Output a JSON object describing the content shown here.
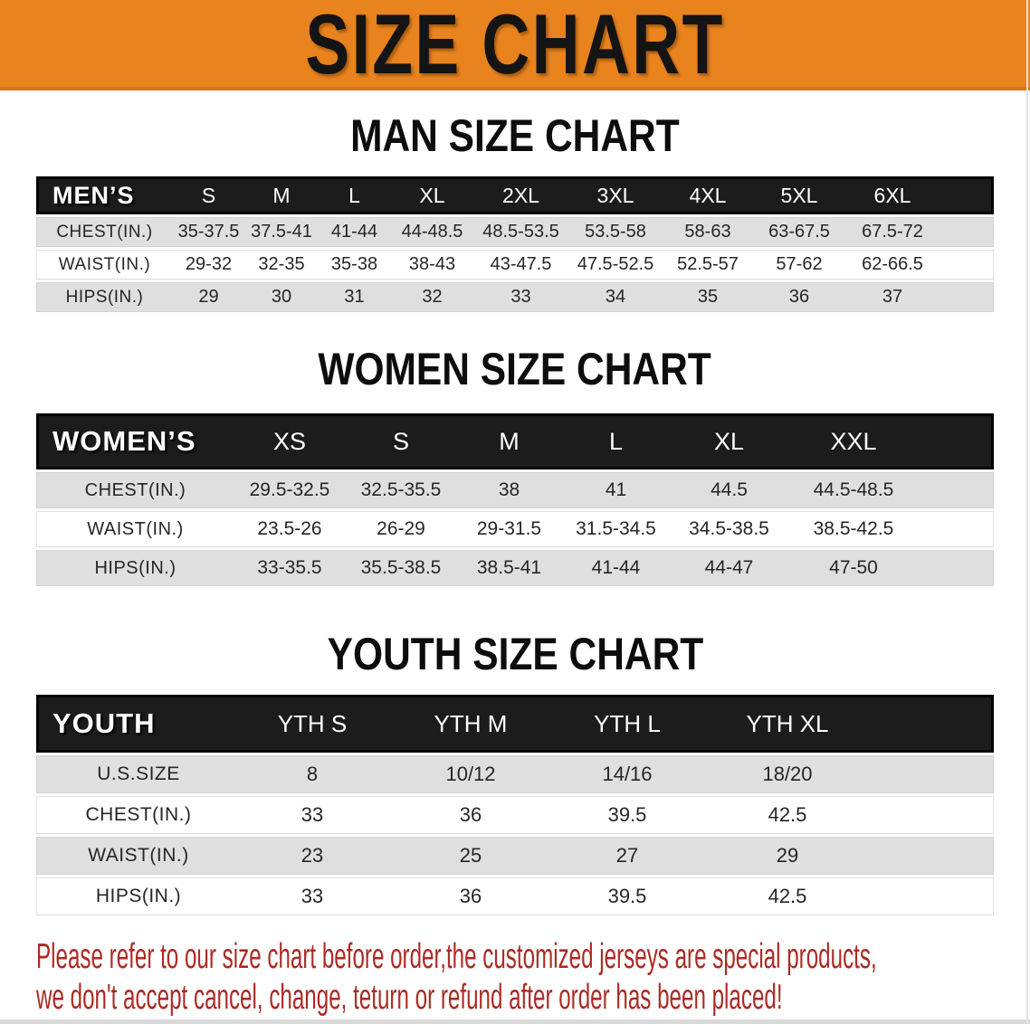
{
  "banner": {
    "title": "SIZE CHART",
    "bg_color": "#E8831E",
    "text_color": "#141414"
  },
  "sections": [
    {
      "heading": "MAN SIZE CHART",
      "label": "MEN’S",
      "columns": [
        "S",
        "M",
        "L",
        "XL",
        "2XL",
        "3XL",
        "4XL",
        "5XL",
        "6XL"
      ],
      "rows": [
        {
          "label": "CHEST(IN.)",
          "values": [
            "35-37.5",
            "37.5-41",
            "41-44",
            "44-48.5",
            "48.5-53.5",
            "53.5-58",
            "58-63",
            "63-67.5",
            "67.5-72"
          ]
        },
        {
          "label": "WAIST(IN.)",
          "values": [
            "29-32",
            "32-35",
            "35-38",
            "38-43",
            "43-47.5",
            "47.5-52.5",
            "52.5-57",
            "57-62",
            "62-66.5"
          ]
        },
        {
          "label": "HIPS(IN.)",
          "values": [
            "29",
            "30",
            "31",
            "32",
            "33",
            "34",
            "35",
            "36",
            "37"
          ]
        }
      ]
    },
    {
      "heading": "WOMEN SIZE CHART",
      "label": "WOMEN’S",
      "columns": [
        "XS",
        "S",
        "M",
        "L",
        "XL",
        "XXL"
      ],
      "rows": [
        {
          "label": "CHEST(IN.)",
          "values": [
            "29.5-32.5",
            "32.5-35.5",
            "38",
            "41",
            "44.5",
            "44.5-48.5"
          ]
        },
        {
          "label": "WAIST(IN.)",
          "values": [
            "23.5-26",
            "26-29",
            "29-31.5",
            "31.5-34.5",
            "34.5-38.5",
            "38.5-42.5"
          ]
        },
        {
          "label": "HIPS(IN.)",
          "values": [
            "33-35.5",
            "35.5-38.5",
            "38.5-41",
            "41-44",
            "44-47",
            "47-50"
          ]
        }
      ]
    },
    {
      "heading": "YOUTH SIZE CHART",
      "label": "YOUTH",
      "columns": [
        "YTH S",
        "YTH M",
        "YTH L",
        "YTH XL"
      ],
      "rows": [
        {
          "label": "U.S.SIZE",
          "values": [
            "8",
            "10/12",
            "14/16",
            "18/20"
          ]
        },
        {
          "label": "CHEST(IN.)",
          "values": [
            "33",
            "36",
            "39.5",
            "42.5"
          ]
        },
        {
          "label": "WAIST(IN.)",
          "values": [
            "23",
            "25",
            "27",
            "29"
          ]
        },
        {
          "label": "HIPS(IN.)",
          "values": [
            "33",
            "36",
            "39.5",
            "42.5"
          ]
        }
      ]
    }
  ],
  "disclaimer": {
    "line1": "Please refer to our size chart before order,the customized jerseys are special products,",
    "line2": "we don't accept cancel, change, teturn or refund after order has been placed!",
    "color": "#AC2B24"
  }
}
